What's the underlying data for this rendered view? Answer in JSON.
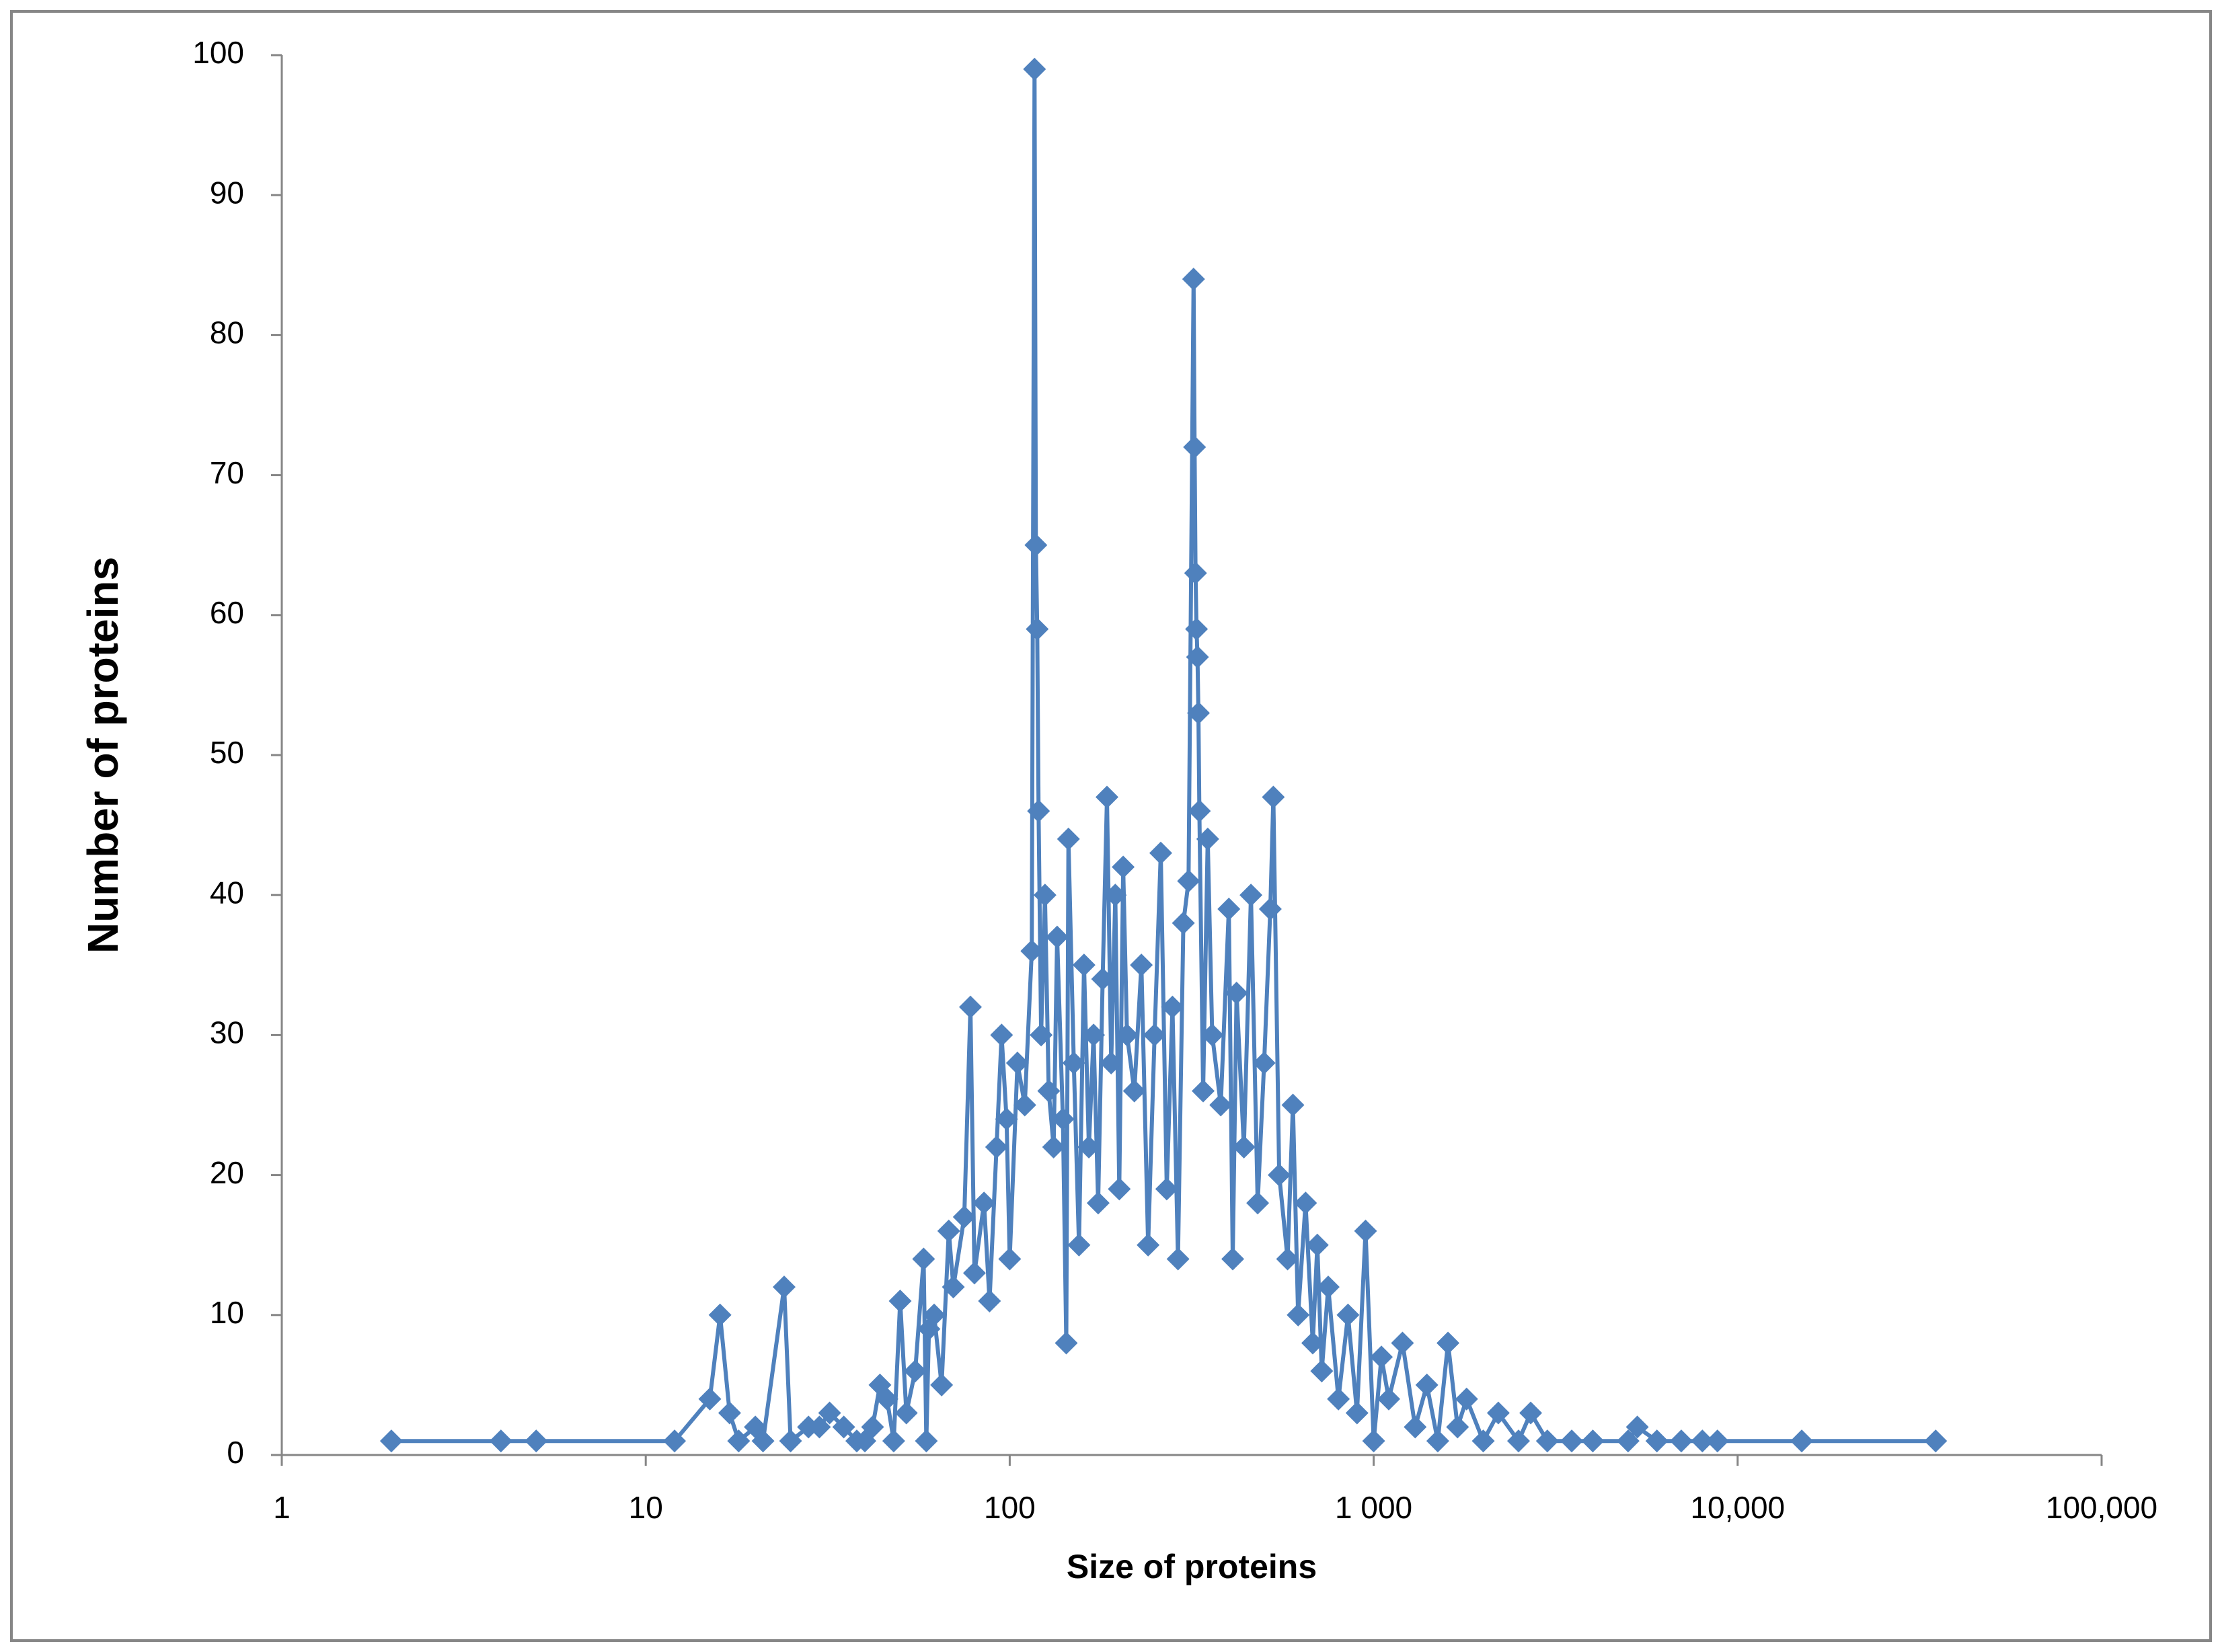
{
  "chart_data": {
    "type": "line",
    "xlabel": "Size of proteins",
    "ylabel": "Number of proteins",
    "xscale": "log",
    "color": "#4f81bd",
    "marker": "diamond",
    "xlim": [
      1,
      100000
    ],
    "xticks": [
      1,
      10,
      100,
      {
        "value": 1000,
        "label": "1 000"
      },
      {
        "value": 10000,
        "label": "10,000"
      },
      {
        "value": 100000,
        "label": "100,000"
      }
    ],
    "ylim": [
      0,
      100
    ],
    "yticks": [
      0,
      10,
      20,
      30,
      40,
      50,
      60,
      70,
      80,
      90,
      100
    ],
    "x": [
      2,
      4,
      5,
      12,
      15,
      16,
      17,
      18,
      20,
      21,
      24,
      25,
      28,
      30,
      32,
      35,
      38,
      40,
      42,
      44,
      46,
      48,
      50,
      52,
      55,
      58,
      59,
      60,
      62,
      65,
      68,
      70,
      75,
      78,
      80,
      85,
      88,
      92,
      95,
      98,
      100,
      105,
      110,
      115,
      117,
      118,
      119,
      120,
      122,
      125,
      128,
      132,
      135,
      140,
      143,
      145,
      150,
      155,
      160,
      165,
      170,
      175,
      180,
      185,
      190,
      195,
      200,
      205,
      210,
      220,
      230,
      240,
      250,
      260,
      270,
      280,
      290,
      300,
      310,
      320,
      322,
      324,
      326,
      328,
      330,
      332,
      340,
      350,
      360,
      380,
      400,
      410,
      420,
      440,
      460,
      480,
      500,
      520,
      530,
      550,
      580,
      600,
      620,
      650,
      680,
      700,
      720,
      750,
      800,
      850,
      900,
      950,
      1000,
      1050,
      1100,
      1200,
      1300,
      1400,
      1500,
      1600,
      1700,
      1800,
      2000,
      2200,
      2500,
      2700,
      3000,
      3500,
      4000,
      5000,
      5300,
      6000,
      7000,
      8000,
      8800,
      15000,
      35000
    ],
    "values": [
      1,
      1,
      1,
      1,
      4,
      10,
      3,
      1,
      2,
      1,
      12,
      1,
      2,
      2,
      3,
      2,
      1,
      1,
      2,
      5,
      4,
      1,
      11,
      3,
      6,
      14,
      1,
      9,
      10,
      5,
      16,
      12,
      17,
      32,
      13,
      18,
      11,
      22,
      30,
      24,
      14,
      28,
      25,
      36,
      99,
      65,
      59,
      46,
      30,
      40,
      26,
      22,
      37,
      24,
      8,
      44,
      28,
      15,
      35,
      22,
      30,
      18,
      34,
      47,
      28,
      40,
      19,
      42,
      30,
      26,
      35,
      15,
      30,
      43,
      19,
      32,
      14,
      38,
      41,
      84,
      72,
      63,
      59,
      57,
      53,
      46,
      26,
      44,
      30,
      25,
      39,
      14,
      33,
      22,
      40,
      18,
      28,
      39,
      47,
      20,
      14,
      25,
      10,
      18,
      8,
      15,
      6,
      12,
      4,
      10,
      3,
      16,
      1,
      7,
      4,
      8,
      2,
      5,
      1,
      8,
      2,
      4,
      1,
      3,
      1,
      3,
      1,
      1,
      1,
      1,
      2,
      1,
      1,
      1,
      1,
      1,
      1
    ]
  }
}
